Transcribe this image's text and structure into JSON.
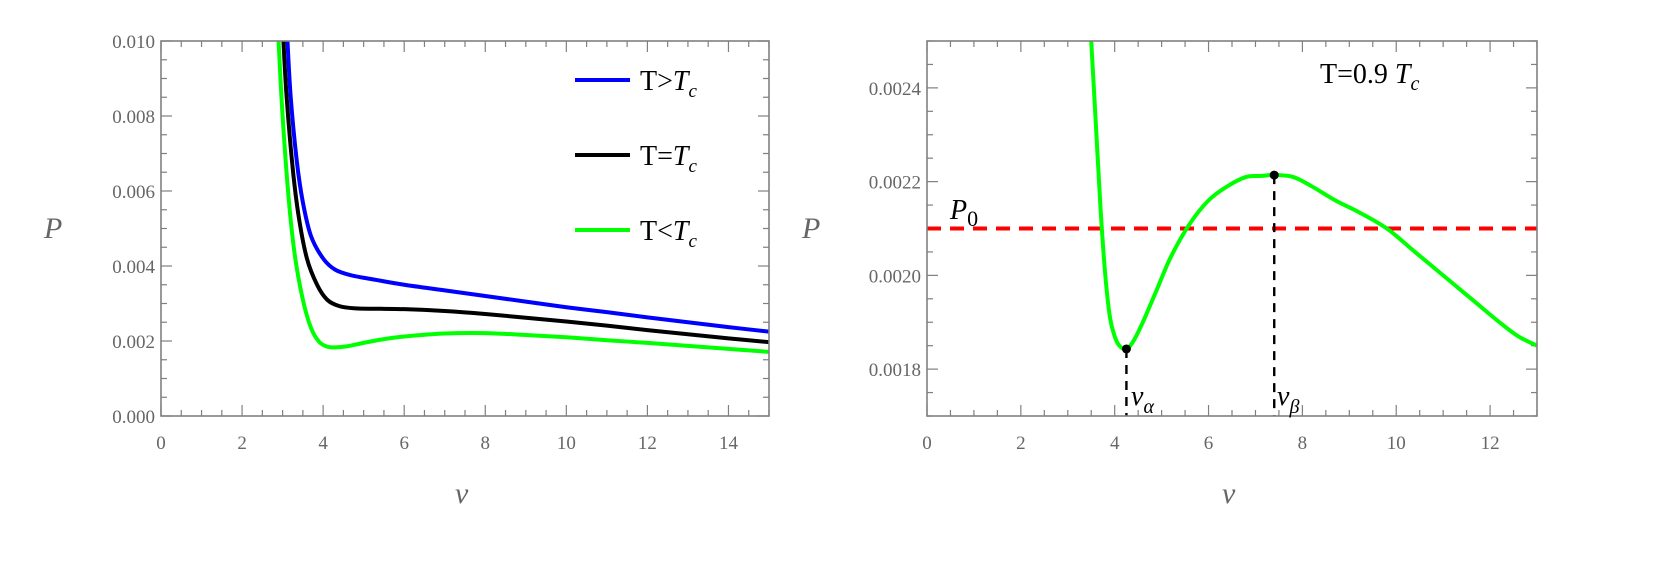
{
  "chart_data": [
    {
      "type": "line",
      "title": "",
      "xlabel": "v",
      "ylabel": "P",
      "xlim": [
        0,
        15
      ],
      "ylim": [
        0.0,
        0.01
      ],
      "x_ticks": [
        "0",
        "2",
        "4",
        "6",
        "8",
        "10",
        "12",
        "14"
      ],
      "y_ticks": [
        "0.000",
        "0.002",
        "0.004",
        "0.006",
        "0.008",
        "0.010"
      ],
      "grid": false,
      "legend_position": "top-right",
      "series": [
        {
          "name": "T>T_c",
          "label_plain": "T>",
          "label_italic": "T",
          "label_sub": "c",
          "color": "#0000ff",
          "x": [
            3.12,
            3.2,
            3.35,
            3.5,
            3.7,
            4.0,
            4.3,
            4.7,
            5.2,
            6,
            7,
            8,
            9,
            10,
            11,
            12,
            13,
            14,
            15
          ],
          "y": [
            0.01,
            0.0085,
            0.0068,
            0.0057,
            0.0048,
            0.0042,
            0.0039,
            0.00375,
            0.00365,
            0.0035,
            0.00335,
            0.0032,
            0.00305,
            0.0029,
            0.00277,
            0.00263,
            0.0025,
            0.00237,
            0.00225
          ]
        },
        {
          "name": "T=T_c",
          "label_plain": "T=",
          "label_italic": "T",
          "label_sub": "c",
          "color": "#000000",
          "x": [
            3.02,
            3.1,
            3.25,
            3.4,
            3.6,
            3.85,
            4.1,
            4.4,
            4.8,
            5.3,
            6,
            7,
            8,
            9,
            10,
            11,
            12,
            13,
            14,
            15
          ],
          "y": [
            0.01,
            0.0085,
            0.0066,
            0.0053,
            0.0042,
            0.0035,
            0.0031,
            0.00293,
            0.00287,
            0.00286,
            0.00285,
            0.0028,
            0.00272,
            0.00262,
            0.00252,
            0.00241,
            0.00229,
            0.00218,
            0.00207,
            0.00197
          ]
        },
        {
          "name": "T<T_c",
          "label_plain": "T<",
          "label_italic": "T",
          "label_sub": "c",
          "color": "#00ff00",
          "x": [
            2.9,
            3.0,
            3.15,
            3.3,
            3.5,
            3.7,
            3.9,
            4.1,
            4.3,
            4.6,
            5,
            5.5,
            6,
            7,
            8,
            9,
            10,
            11,
            12,
            13,
            14,
            15
          ],
          "y": [
            0.01,
            0.008,
            0.0058,
            0.0043,
            0.0031,
            0.00235,
            0.00198,
            0.00185,
            0.00183,
            0.00186,
            0.00195,
            0.00205,
            0.00212,
            0.0022,
            0.00221,
            0.00216,
            0.0021,
            0.00202,
            0.00195,
            0.00187,
            0.00179,
            0.00171
          ]
        }
      ]
    },
    {
      "type": "line",
      "title": "",
      "annotation": "T=0.9 T_c",
      "xlabel": "v",
      "ylabel": "P",
      "xlim": [
        0,
        13
      ],
      "ylim": [
        0.0017,
        0.0025
      ],
      "x_ticks": [
        "0",
        "2",
        "4",
        "6",
        "8",
        "10",
        "12"
      ],
      "y_ticks": [
        "0.0018",
        "0.0020",
        "0.0022",
        "0.0024"
      ],
      "grid": false,
      "series": [
        {
          "name": "T=0.9 T_c",
          "color": "#00ff00",
          "x": [
            3.5,
            3.6,
            3.7,
            3.8,
            3.9,
            4.0,
            4.1,
            4.25,
            4.4,
            4.6,
            4.9,
            5.2,
            5.6,
            6.0,
            6.4,
            6.8,
            7.1,
            7.4,
            7.8,
            8.2,
            8.7,
            9.2,
            9.8,
            10.4,
            11.0,
            11.6,
            12.2,
            12.6,
            13.0
          ],
          "y": [
            0.0025,
            0.00232,
            0.00214,
            0.002,
            0.00191,
            0.00187,
            0.00185,
            0.001843,
            0.00186,
            0.0019,
            0.00197,
            0.00204,
            0.00211,
            0.00216,
            0.00219,
            0.00221,
            0.002212,
            0.002214,
            0.00221,
            0.00219,
            0.00216,
            0.002135,
            0.0021,
            0.00205,
            0.002,
            0.00195,
            0.0019,
            0.00187,
            0.00185
          ]
        }
      ],
      "reference_line": {
        "label": "P_0",
        "label_main": "P",
        "label_sub": "0",
        "y": 0.0021,
        "color": "#ff0000",
        "style": "dashed"
      },
      "markers": [
        {
          "label": "v_alpha",
          "label_main": "v",
          "label_sub": "α",
          "x": 4.25,
          "y": 0.001843
        },
        {
          "label": "v_beta",
          "label_main": "v",
          "label_sub": "β",
          "x": 7.4,
          "y": 0.002214
        }
      ]
    }
  ],
  "left": {
    "xlabel": "v",
    "ylabel": "P",
    "legend": [
      {
        "plain": "T>",
        "italic": "T",
        "sub": "c",
        "color": "#0000ff"
      },
      {
        "plain": "T=",
        "italic": "T",
        "sub": "c",
        "color": "#000000"
      },
      {
        "plain": "T<",
        "italic": "T",
        "sub": "c",
        "color": "#00ff00"
      }
    ]
  },
  "right": {
    "xlabel": "v",
    "ylabel": "P",
    "annotation_plain": "T=0.9 ",
    "annotation_italic": "T",
    "annotation_sub": "c",
    "p0_main": "P",
    "p0_sub": "0",
    "va_main": "v",
    "va_sub": "α",
    "vb_main": "v",
    "vb_sub": "β"
  }
}
